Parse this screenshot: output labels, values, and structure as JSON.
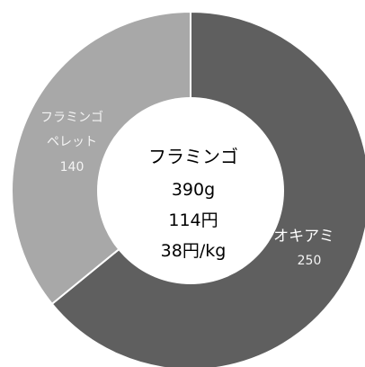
{
  "chart_data": {
    "type": "pie",
    "donut": true,
    "categories": [
      "オキアミ",
      "フラミンゴペレット"
    ],
    "values": [
      250,
      140
    ],
    "colors": [
      "#5f5f5f",
      "#a8a8a8"
    ],
    "slice_labels": [
      {
        "lines": [
          "オキアミ"
        ],
        "value": "250"
      },
      {
        "lines": [
          "フラミンゴ",
          "ペレット"
        ],
        "value": "140"
      }
    ],
    "center": {
      "title": "フラミンゴ",
      "lines": [
        "390g",
        "114円",
        "38円/kg"
      ]
    }
  }
}
